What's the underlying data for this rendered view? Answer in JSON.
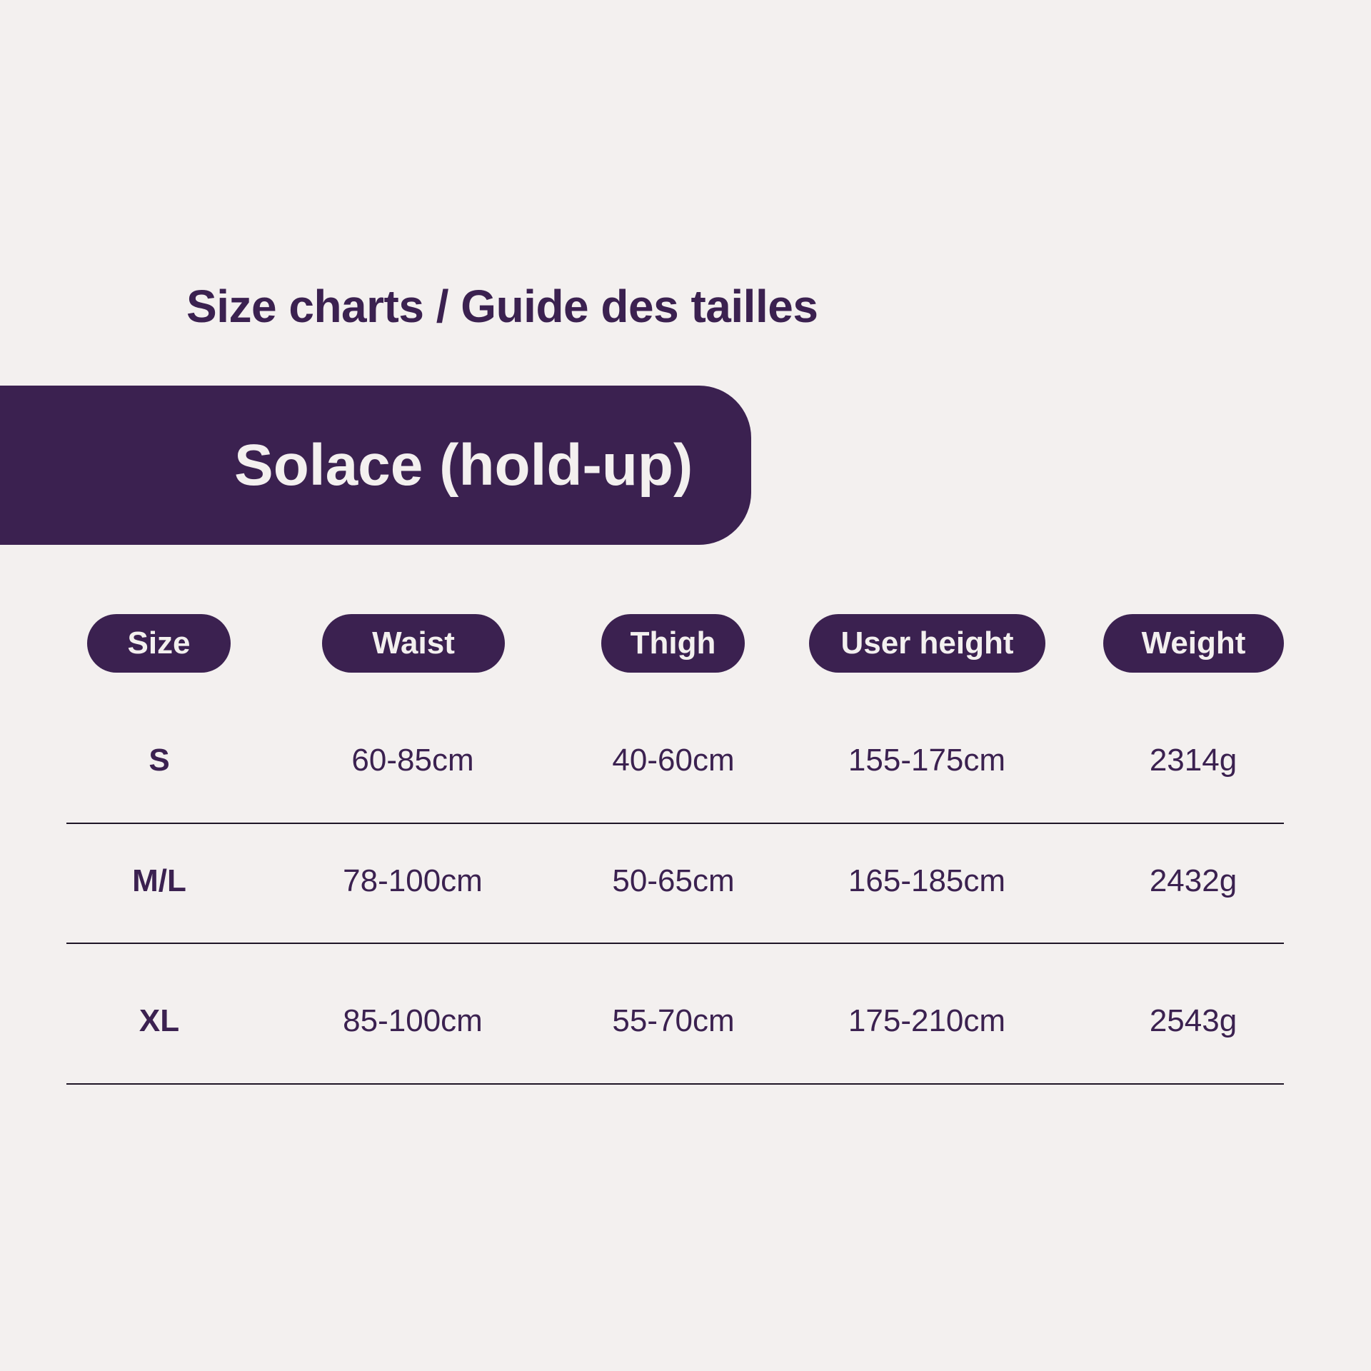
{
  "title": "Size charts / Guide des tailles",
  "product": "Solace (hold-up)",
  "colors": {
    "primary": "#3b2150",
    "background": "#f3f0ef"
  },
  "table": {
    "headers": [
      "Size",
      "Waist",
      "Thigh",
      "User height",
      "Weight"
    ],
    "rows": [
      [
        "S",
        "60-85cm",
        "40-60cm",
        "155-175cm",
        "2314g"
      ],
      [
        "M/L",
        "78-100cm",
        "50-65cm",
        "165-185cm",
        "2432g"
      ],
      [
        "XL",
        "85-100cm",
        "55-70cm",
        "175-210cm",
        "2543g"
      ]
    ]
  }
}
